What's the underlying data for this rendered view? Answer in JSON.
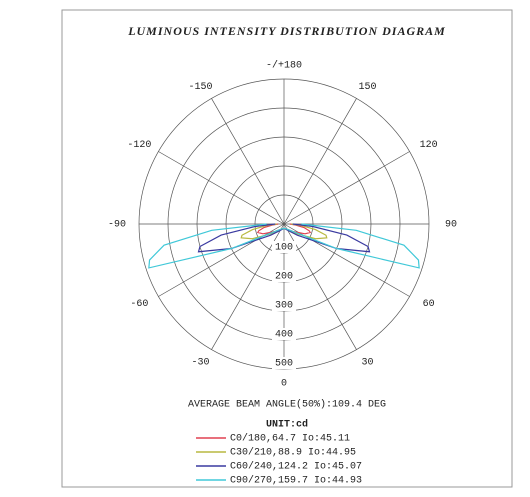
{
  "chart_data": {
    "type": "polar",
    "title": "LUMINOUS INTENSITY DISTRIBUTION DIAGRAM",
    "annotation": "AVERAGE BEAM ANGLE(50%):109.4 DEG",
    "unit_label": "UNIT:cd",
    "x": [
      -90,
      -85,
      -80,
      -75,
      -72,
      -65,
      -50,
      -30,
      0,
      30,
      50,
      65,
      72,
      75,
      80,
      85,
      90
    ],
    "series": [
      {
        "name": "C0/180,64.7 Io:45.11",
        "color": "#e04050",
        "values": [
          20,
          40,
          70,
          90,
          95,
          80,
          40,
          20,
          15,
          20,
          40,
          80,
          95,
          90,
          70,
          40,
          20
        ]
      },
      {
        "name": "C30/210,88.9 Io:44.95",
        "color": "#b8b840",
        "values": [
          25,
          60,
          110,
          150,
          155,
          120,
          50,
          20,
          15,
          20,
          50,
          120,
          155,
          150,
          110,
          60,
          25
        ]
      },
      {
        "name": "C60/240,124.2 Io:45.07",
        "color": "#3a3aa0",
        "values": [
          30,
          100,
          220,
          300,
          310,
          200,
          60,
          25,
          15,
          25,
          60,
          200,
          310,
          300,
          220,
          100,
          30
        ]
      },
      {
        "name": "C90/270,159.7 Io:44.93",
        "color": "#40c8d8",
        "values": [
          60,
          250,
          420,
          480,
          490,
          200,
          40,
          20,
          15,
          20,
          40,
          200,
          490,
          480,
          420,
          250,
          60
        ]
      }
    ],
    "xticks": [
      {
        "value": 180,
        "label": "-/+180"
      },
      -150,
      150,
      -120,
      120,
      -90,
      90,
      -60,
      60,
      -30,
      30,
      0
    ],
    "rlim": [
      0,
      500
    ],
    "rticks": [
      100,
      200,
      300,
      400,
      500
    ],
    "grid": true
  }
}
